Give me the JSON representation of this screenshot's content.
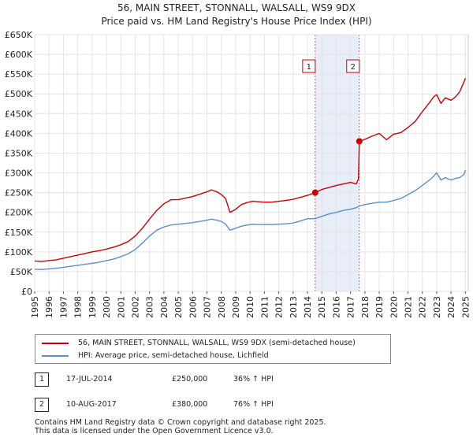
{
  "chart_data": {
    "type": "line",
    "title": "56, MAIN STREET, STONNALL, WALSALL, WS9 9DX",
    "subtitle": "Price paid vs. HM Land Registry's House Price Index (HPI)",
    "xlim": [
      1995,
      2025.2
    ],
    "ylim": [
      0,
      650000
    ],
    "y_ticks": [
      0,
      50000,
      100000,
      150000,
      200000,
      250000,
      300000,
      350000,
      400000,
      450000,
      500000,
      550000,
      600000,
      650000
    ],
    "y_tick_labels": [
      "£0",
      "£50K",
      "£100K",
      "£150K",
      "£200K",
      "£250K",
      "£300K",
      "£350K",
      "£400K",
      "£450K",
      "£500K",
      "£550K",
      "£600K",
      "£650K"
    ],
    "x_tick_labels": [
      "1995",
      "1996",
      "1997",
      "1998",
      "1999",
      "2000",
      "2001",
      "2002",
      "2003",
      "2004",
      "2005",
      "2006",
      "2007",
      "2008",
      "2009",
      "2010",
      "2011",
      "2012",
      "2013",
      "2014",
      "2015",
      "2016",
      "2017",
      "2018",
      "2019",
      "2020",
      "2021",
      "2022",
      "2023",
      "2024",
      "2025"
    ],
    "grid": true,
    "legend_position": "below",
    "shaded_region": [
      2014.54,
      2017.61
    ],
    "series": [
      {
        "name": "56, MAIN STREET, STONNALL, WALSALL, WS9 9DX (semi-detached house)",
        "color": "#cc0000",
        "x": [
          1995.0,
          1995.5,
          1996.0,
          1996.5,
          1997.0,
          1997.5,
          1998.0,
          1998.5,
          1999.0,
          1999.5,
          2000.0,
          2000.5,
          2001.0,
          2001.5,
          2002.0,
          2002.5,
          2003.0,
          2003.5,
          2004.0,
          2004.5,
          2005.0,
          2005.5,
          2006.0,
          2006.5,
          2007.0,
          2007.3,
          2007.7,
          2008.0,
          2008.3,
          2008.6,
          2009.0,
          2009.4,
          2009.8,
          2010.2,
          2010.6,
          2011.0,
          2011.5,
          2012.0,
          2012.5,
          2013.0,
          2013.5,
          2014.0,
          2014.54,
          2015.0,
          2015.5,
          2016.0,
          2016.5,
          2017.0,
          2017.4,
          2017.55,
          2017.61,
          2018.0,
          2018.5,
          2019.0,
          2019.5,
          2020.0,
          2020.5,
          2021.0,
          2021.5,
          2022.0,
          2022.5,
          2022.8,
          2023.0,
          2023.3,
          2023.6,
          2024.0,
          2024.3,
          2024.6,
          2024.9,
          2025.0
        ],
        "values": [
          77000,
          76000,
          78000,
          80000,
          84000,
          88000,
          92000,
          96000,
          100000,
          103000,
          107000,
          112000,
          118000,
          126000,
          140000,
          160000,
          183000,
          205000,
          222000,
          232000,
          232000,
          236000,
          240000,
          246000,
          252000,
          257000,
          252000,
          245000,
          235000,
          200000,
          208000,
          220000,
          225000,
          228000,
          227000,
          226000,
          226000,
          228000,
          230000,
          233000,
          238000,
          243000,
          250000,
          258000,
          263000,
          268000,
          272000,
          276000,
          272000,
          285000,
          380000,
          385000,
          393000,
          400000,
          384000,
          398000,
          402000,
          415000,
          430000,
          455000,
          478000,
          493000,
          498000,
          476000,
          490000,
          484000,
          492000,
          505000,
          530000,
          540000
        ]
      },
      {
        "name": "HPI: Average price, semi-detached house, Lichfield",
        "color": "#5b8fc9",
        "x": [
          1995.0,
          1995.5,
          1996.0,
          1996.5,
          1997.0,
          1997.5,
          1998.0,
          1998.5,
          1999.0,
          1999.5,
          2000.0,
          2000.5,
          2001.0,
          2001.5,
          2002.0,
          2002.5,
          2003.0,
          2003.5,
          2004.0,
          2004.5,
          2005.0,
          2005.5,
          2006.0,
          2006.5,
          2007.0,
          2007.3,
          2007.7,
          2008.0,
          2008.3,
          2008.6,
          2009.0,
          2009.4,
          2009.8,
          2010.2,
          2010.6,
          2011.0,
          2011.5,
          2012.0,
          2012.5,
          2013.0,
          2013.5,
          2014.0,
          2014.54,
          2015.0,
          2015.5,
          2016.0,
          2016.5,
          2017.0,
          2017.4,
          2017.61,
          2018.0,
          2018.5,
          2019.0,
          2019.5,
          2020.0,
          2020.5,
          2021.0,
          2021.5,
          2022.0,
          2022.5,
          2022.8,
          2023.0,
          2023.3,
          2023.6,
          2024.0,
          2024.3,
          2024.6,
          2024.9,
          2025.0
        ],
        "values": [
          56000,
          55500,
          57000,
          58500,
          61000,
          63500,
          66000,
          68500,
          71000,
          74000,
          78000,
          82000,
          88000,
          95000,
          106000,
          122000,
          140000,
          155000,
          163000,
          168000,
          170000,
          172000,
          174000,
          177000,
          180000,
          183000,
          180000,
          177000,
          170000,
          155000,
          160000,
          165000,
          168000,
          170000,
          169000,
          169000,
          169000,
          170000,
          171000,
          173000,
          178000,
          184000,
          184000,
          190000,
          196000,
          200000,
          205000,
          208000,
          212000,
          216000,
          220000,
          223000,
          226000,
          226000,
          230000,
          235000,
          245000,
          255000,
          268000,
          282000,
          292000,
          300000,
          282000,
          288000,
          282000,
          286000,
          288000,
          296000,
          307000
        ]
      }
    ],
    "transactions": [
      {
        "label": "1",
        "year": 2014.54,
        "price": 250000
      },
      {
        "label": "2",
        "year": 2017.61,
        "price": 380000
      }
    ]
  },
  "legend": {
    "property": "56, MAIN STREET, STONNALL, WALSALL, WS9 9DX (semi-detached house)",
    "hpi": "HPI: Average price, semi-detached house, Lichfield"
  },
  "table": [
    {
      "num": "1",
      "date": "17-JUL-2014",
      "price": "£250,000",
      "hpi": "36% ↑ HPI"
    },
    {
      "num": "2",
      "date": "10-AUG-2017",
      "price": "£380,000",
      "hpi": "76% ↑ HPI"
    }
  ],
  "footer": {
    "line1": "Contains HM Land Registry data © Crown copyright and database right 2025.",
    "line2": "This data is licensed under the Open Government Licence v3.0."
  }
}
